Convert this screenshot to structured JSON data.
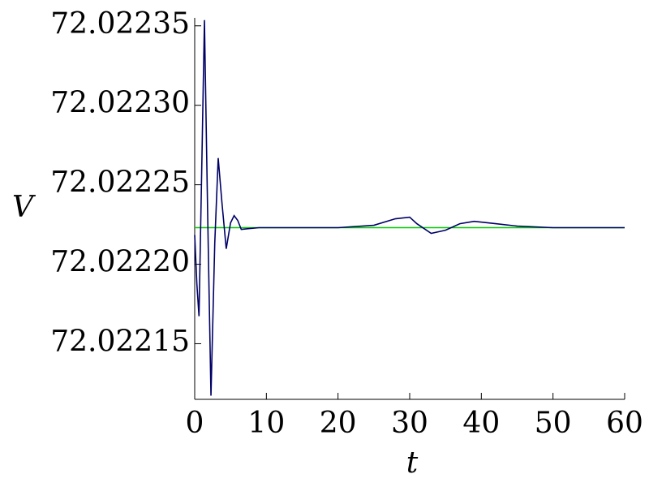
{
  "chart_data": {
    "type": "line",
    "x_label": "t",
    "y_label": "V",
    "xlim": [
      0,
      60
    ],
    "xticks": [
      0,
      10,
      20,
      30,
      40,
      50,
      60
    ],
    "ylim": [
      72.022115,
      72.022355
    ],
    "yticks": [
      72.02215,
      {
        "value": 72.0222,
        "label": "72.02220"
      },
      72.02225,
      {
        "value": 72.0223,
        "label": "72.02230"
      },
      72.02235
    ],
    "series": [
      {
        "color": "#000066",
        "x": [
          0,
          0.3,
          0.6,
          1.0,
          1.36,
          1.8,
          2.27,
          2.8,
          3.28,
          3.8,
          4.4,
          5.0,
          5.5,
          6.0,
          6.5,
          7.5,
          9,
          15,
          20,
          25,
          28,
          30,
          31,
          33,
          35,
          37,
          39,
          42,
          45,
          50,
          55,
          60
        ],
        "values": [
          72.0222184,
          72.0221878,
          72.0221673,
          72.0222643,
          72.0223536,
          72.0222337,
          72.0221173,
          72.0222133,
          72.0222668,
          72.0222388,
          72.0222097,
          72.022226,
          72.0222306,
          72.0222276,
          72.0222219,
          72.0222224,
          72.022223,
          72.022223,
          72.022223,
          72.0222245,
          72.0222286,
          72.0222296,
          72.0222255,
          72.0222194,
          72.0222214,
          72.0222255,
          72.022227,
          72.0222255,
          72.022224,
          72.022223,
          72.022223,
          72.022223
        ]
      },
      {
        "color": "#00cc00",
        "x": [
          0,
          60
        ],
        "values": [
          72.022223,
          72.022223
        ]
      }
    ]
  }
}
